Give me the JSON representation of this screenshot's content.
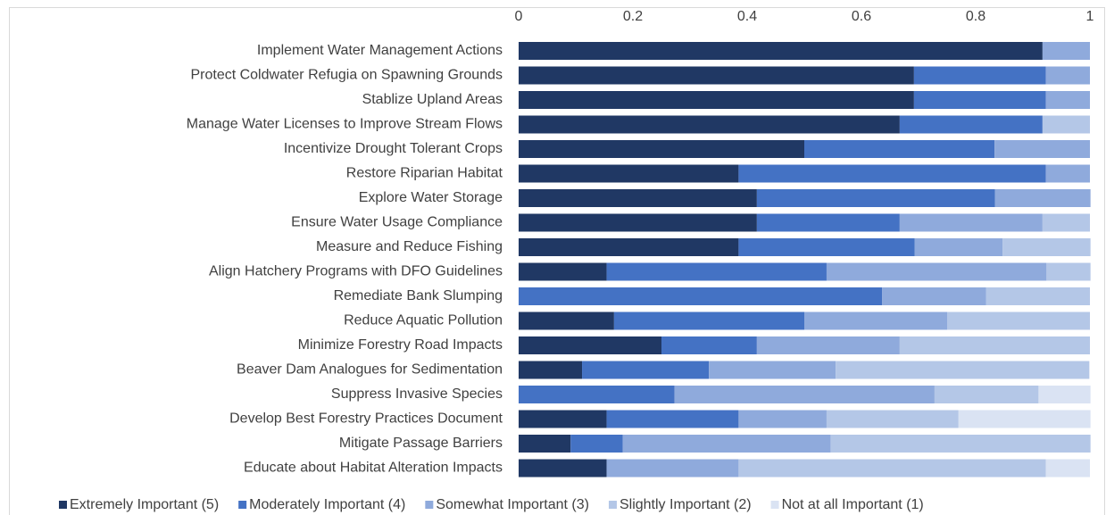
{
  "chart_data": {
    "type": "stacked-bar-horizontal",
    "categories": [
      "Implement Water Management Actions",
      "Protect Coldwater Refugia on Spawning Grounds",
      "Stablize Upland Areas",
      "Manage Water Licenses to Improve Stream Flows",
      "Incentivize Drought Tolerant Crops",
      "Restore Riparian Habitat",
      "Explore Water Storage",
      "Ensure Water Usage Compliance",
      "Measure and Reduce Fishing",
      "Align Hatchery Programs with DFO Guidelines",
      "Remediate Bank Slumping",
      "Reduce Aquatic Pollution",
      "Minimize Forestry Road Impacts",
      "Beaver Dam Analogues for Sedimentation",
      "Suppress Invasive Species",
      "Develop Best Forestry Practices Document",
      "Mitigate Passage Barriers",
      "Educate about Habitat Alteration Impacts"
    ],
    "series": [
      {
        "name": "Extremely Important (5)",
        "color": "#203864",
        "values": [
          0.917,
          0.692,
          0.692,
          0.667,
          0.5,
          0.385,
          0.417,
          0.417,
          0.385,
          0.154,
          0,
          0.167,
          0.25,
          0.111,
          0,
          0.154,
          0.091,
          0.154
        ]
      },
      {
        "name": "Moderately Important (4)",
        "color": "#4472c4",
        "values": [
          0,
          0.231,
          0.231,
          0.25,
          0.333,
          0.538,
          0.417,
          0.25,
          0.308,
          0.385,
          0.636,
          0.333,
          0.167,
          0.222,
          0.273,
          0.231,
          0.091,
          0
        ]
      },
      {
        "name": "Somewhat Important (3)",
        "color": "#8faadc",
        "values": [
          0.083,
          0.077,
          0.077,
          0,
          0.167,
          0.077,
          0.167,
          0.25,
          0.154,
          0.385,
          0.182,
          0.25,
          0.25,
          0.222,
          0.455,
          0.154,
          0.364,
          0.231
        ]
      },
      {
        "name": "Slightly Important (2)",
        "color": "#b4c7e7",
        "values": [
          0,
          0,
          0,
          0.083,
          0,
          0,
          0,
          0.083,
          0.154,
          0.077,
          0.182,
          0.25,
          0.333,
          0.444,
          0.182,
          0.231,
          0.455,
          0.538
        ]
      },
      {
        "name": "Not at all Important (1)",
        "color": "#dae3f3",
        "values": [
          0,
          0,
          0,
          0,
          0,
          0,
          0,
          0,
          0,
          0,
          0,
          0,
          0,
          0,
          0.091,
          0.231,
          0,
          0.077
        ]
      }
    ],
    "xlim": [
      0,
      1
    ],
    "xticks": [
      0,
      0.2,
      0.4,
      0.6,
      0.8,
      1
    ],
    "grid": false,
    "legend": "bottom"
  }
}
